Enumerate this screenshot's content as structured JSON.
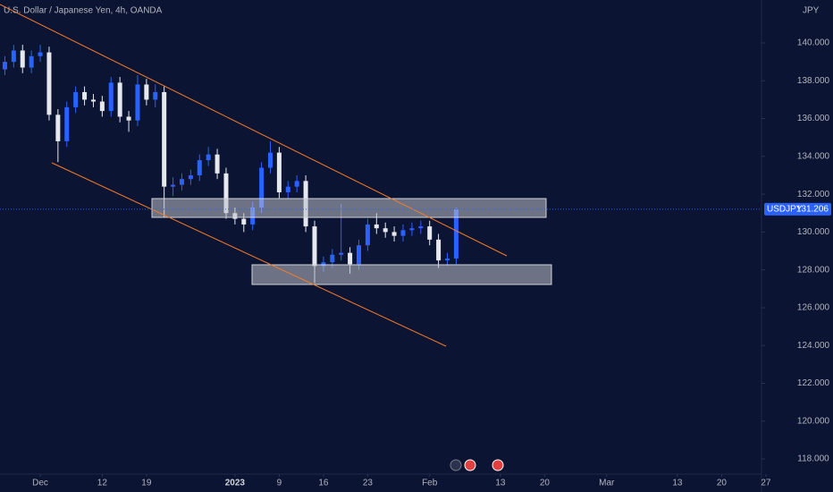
{
  "chart_data": {
    "type": "candlestick",
    "title": "U.S. Dollar / Japanese Yen, 4h, OANDA",
    "currency": "JPY",
    "symbol": "USDJPY",
    "last_price": 131.206,
    "last_price_label": "131.206",
    "up_color": "#2962ff",
    "down_color": "#e6e8ee",
    "x": [
      -4,
      -3,
      -2,
      -1,
      0,
      1,
      2,
      3,
      4,
      5,
      6,
      7,
      8,
      9,
      10,
      11,
      12,
      13,
      14,
      15,
      16,
      17,
      18,
      19,
      20,
      21,
      22,
      23,
      24,
      25,
      26,
      27,
      28,
      29,
      30,
      31,
      32,
      33,
      34,
      35,
      36,
      37,
      38,
      39,
      40,
      41,
      42,
      43,
      44,
      45,
      46,
      47
    ],
    "open": [
      138.6,
      139.0,
      139.6,
      138.7,
      139.3,
      139.5,
      136.2,
      134.8,
      136.6,
      137.4,
      137.0,
      136.9,
      136.4,
      137.9,
      136.1,
      135.9,
      137.8,
      137.0,
      137.4,
      132.4,
      132.5,
      132.8,
      133.0,
      133.8,
      134.1,
      133.1,
      131.0,
      130.7,
      130.4,
      131.3,
      133.4,
      134.2,
      132.1,
      132.4,
      132.7,
      130.3,
      128.2,
      128.4,
      128.8,
      128.9,
      128.3,
      129.3,
      130.4,
      130.2,
      130.0,
      129.8,
      130.1,
      130.2,
      130.3,
      129.6,
      128.5,
      128.6
    ],
    "high": [
      139.3,
      139.9,
      139.9,
      139.6,
      139.9,
      139.8,
      136.5,
      136.9,
      137.7,
      137.7,
      137.3,
      137.2,
      138.2,
      138.2,
      136.4,
      138.3,
      138.1,
      137.8,
      137.7,
      132.9,
      133.1,
      133.3,
      134.1,
      134.5,
      134.4,
      133.4,
      131.3,
      131.0,
      131.6,
      133.7,
      134.8,
      134.5,
      132.7,
      133.0,
      133.0,
      130.6,
      128.7,
      129.1,
      131.5,
      129.2,
      129.6,
      130.7,
      131.0,
      130.5,
      130.3,
      130.4,
      130.5,
      130.6,
      130.6,
      129.9,
      128.9,
      131.3
    ],
    "low": [
      138.3,
      138.7,
      138.4,
      138.4,
      139.0,
      135.9,
      133.7,
      134.5,
      136.3,
      136.7,
      136.6,
      136.1,
      136.1,
      135.8,
      135.3,
      135.6,
      136.7,
      136.6,
      130.8,
      131.9,
      132.2,
      132.5,
      132.7,
      133.5,
      132.8,
      130.7,
      130.4,
      130.0,
      130.1,
      131.0,
      133.1,
      131.8,
      131.8,
      132.1,
      130.0,
      127.3,
      127.9,
      128.1,
      128.5,
      127.8,
      128.0,
      129.0,
      129.9,
      129.7,
      129.5,
      129.5,
      129.8,
      129.9,
      129.3,
      128.1,
      128.2,
      128.3
    ],
    "close": [
      139.0,
      139.6,
      138.7,
      139.3,
      139.5,
      136.2,
      134.8,
      136.6,
      137.4,
      137.0,
      136.9,
      136.4,
      137.9,
      136.1,
      135.9,
      137.8,
      137.0,
      137.4,
      132.4,
      132.5,
      132.8,
      133.0,
      133.8,
      134.1,
      133.1,
      131.0,
      130.7,
      130.4,
      131.3,
      133.4,
      134.2,
      132.1,
      132.4,
      132.7,
      130.3,
      128.2,
      128.4,
      128.8,
      128.9,
      128.3,
      129.3,
      130.4,
      130.2,
      130.0,
      129.8,
      130.1,
      130.2,
      130.3,
      129.6,
      128.5,
      128.6,
      131.2
    ],
    "xlim": [
      -4.55,
      81.5
    ],
    "xticks": [
      {
        "value": 0,
        "label": "Dec"
      },
      {
        "value": 7,
        "label": "12"
      },
      {
        "value": 12,
        "label": "19"
      },
      {
        "value": 22,
        "label": "2023"
      },
      {
        "value": 27,
        "label": "9"
      },
      {
        "value": 32,
        "label": "16"
      },
      {
        "value": 37,
        "label": "23"
      },
      {
        "value": 44,
        "label": "Feb"
      },
      {
        "value": 52,
        "label": "13"
      },
      {
        "value": 57,
        "label": "20"
      },
      {
        "value": 64,
        "label": "Mar"
      },
      {
        "value": 72,
        "label": "13"
      },
      {
        "value": 77,
        "label": "20"
      },
      {
        "value": 82,
        "label": "27"
      }
    ],
    "ylim": [
      117.2,
      142.27
    ],
    "yticks": [
      {
        "value": 118,
        "label": "118.000"
      },
      {
        "value": 120,
        "label": "120.000"
      },
      {
        "value": 122,
        "label": "122.000"
      },
      {
        "value": 124,
        "label": "124.000"
      },
      {
        "value": 126,
        "label": "126.000"
      },
      {
        "value": 128,
        "label": "128.000"
      },
      {
        "value": 130,
        "label": "130.000"
      },
      {
        "value": 132,
        "label": "132.000"
      },
      {
        "value": 134,
        "label": "134.000"
      },
      {
        "value": 136,
        "label": "136.000"
      },
      {
        "value": 138,
        "label": "138.000"
      },
      {
        "value": 140,
        "label": "140.000"
      }
    ]
  }
}
